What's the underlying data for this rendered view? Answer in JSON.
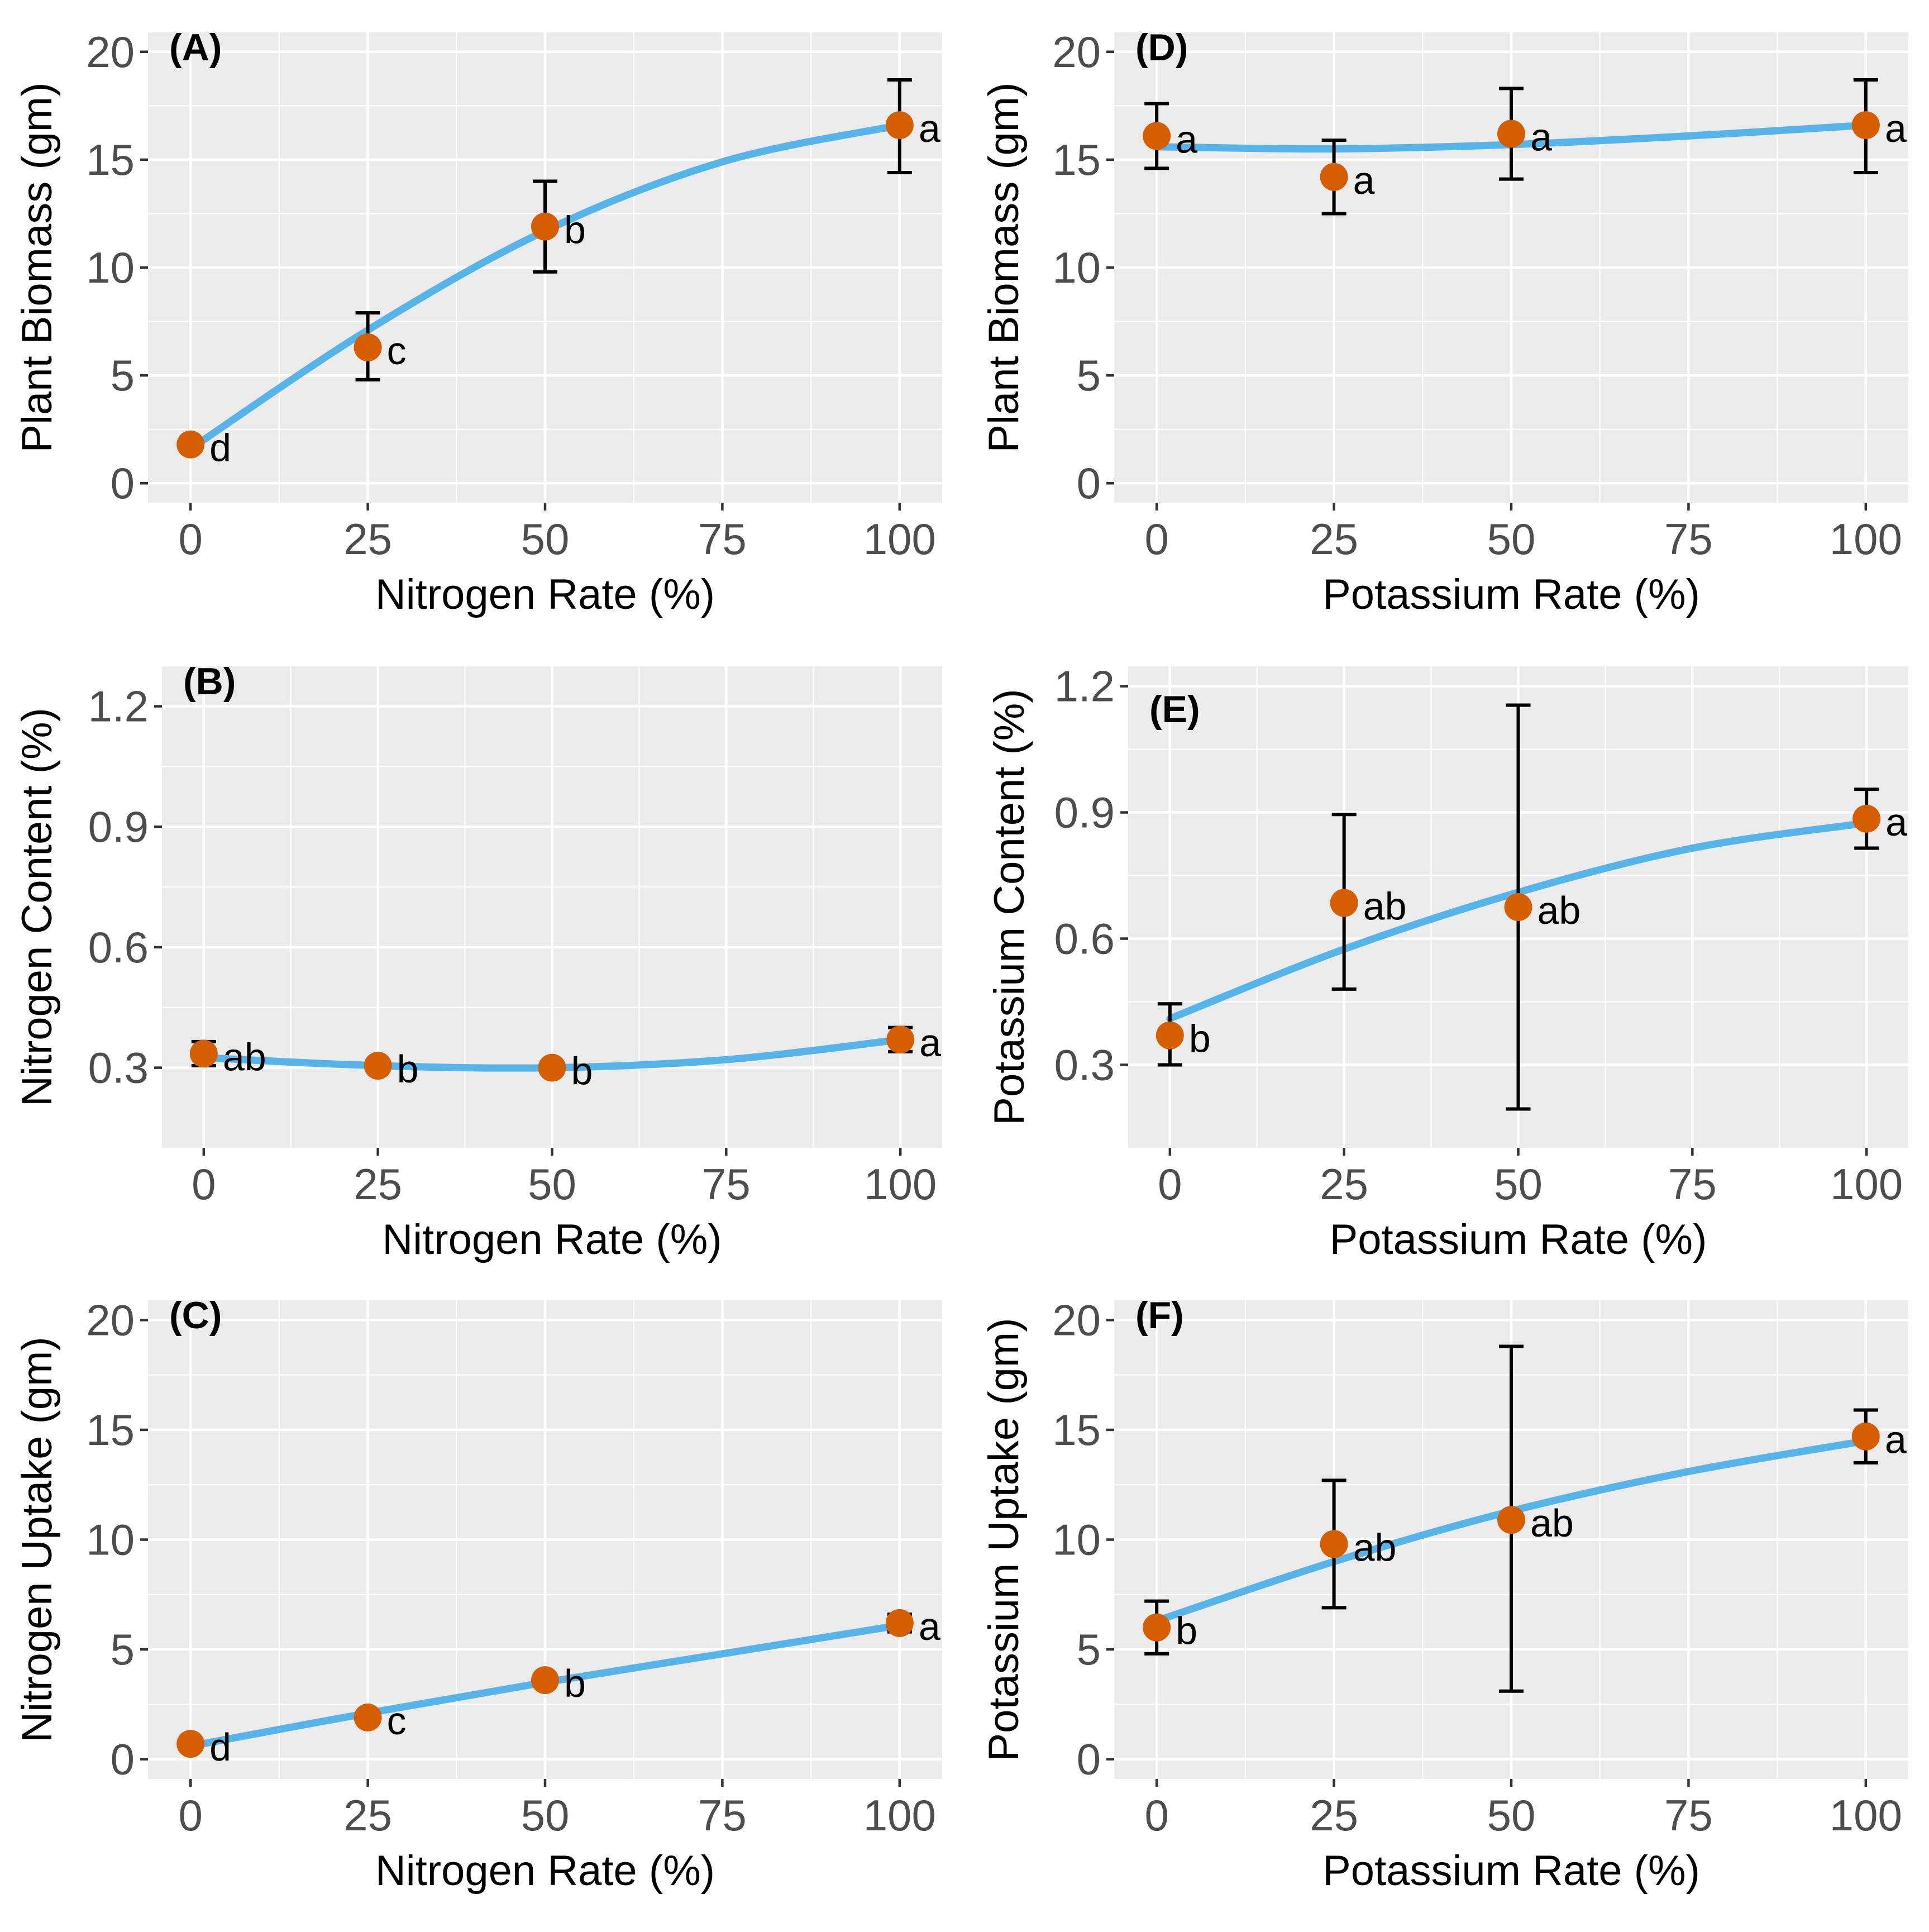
{
  "chart_data": [
    {
      "id": "A",
      "type": "scatter",
      "tag": "(A)",
      "title": "",
      "xlabel": "Nitrogen Rate (%)",
      "ylabel": "Plant Biomass (gm)",
      "xlim": [
        0,
        100
      ],
      "ylim": [
        0,
        20
      ],
      "xticks": [
        0,
        25,
        50,
        75,
        100
      ],
      "xtick_labels": [
        "0",
        "25",
        "50",
        "75",
        "100"
      ],
      "yticks": [
        0,
        5,
        10,
        15,
        20
      ],
      "ytick_labels": [
        "0",
        "5",
        "10",
        "15",
        "20"
      ],
      "grid": true,
      "points": [
        {
          "x": 0,
          "y": 1.8,
          "err_low": 1.8,
          "err_high": 1.8,
          "letter": "d"
        },
        {
          "x": 25,
          "y": 6.3,
          "err_low": 4.8,
          "err_high": 7.9,
          "letter": "c"
        },
        {
          "x": 50,
          "y": 11.9,
          "err_low": 9.8,
          "err_high": 14.0,
          "letter": "b"
        },
        {
          "x": 100,
          "y": 16.6,
          "err_low": 14.4,
          "err_high": 18.7,
          "letter": "a"
        }
      ],
      "fit": {
        "x": [
          0,
          25,
          50,
          75,
          100
        ],
        "y": [
          1.6,
          7.1,
          11.7,
          14.9,
          16.6
        ]
      }
    },
    {
      "id": "D",
      "type": "scatter",
      "tag": "(D)",
      "title": "",
      "xlabel": "Potassium Rate (%)",
      "ylabel": "Plant Biomass (gm)",
      "xlim": [
        0,
        100
      ],
      "ylim": [
        0,
        20
      ],
      "xticks": [
        0,
        25,
        50,
        75,
        100
      ],
      "xtick_labels": [
        "0",
        "25",
        "50",
        "75",
        "100"
      ],
      "yticks": [
        0,
        5,
        10,
        15,
        20
      ],
      "ytick_labels": [
        "0",
        "5",
        "10",
        "15",
        "20"
      ],
      "grid": true,
      "points": [
        {
          "x": 0,
          "y": 16.1,
          "err_low": 14.6,
          "err_high": 17.6,
          "letter": "a"
        },
        {
          "x": 25,
          "y": 14.2,
          "err_low": 12.5,
          "err_high": 15.9,
          "letter": "a"
        },
        {
          "x": 50,
          "y": 16.2,
          "err_low": 14.1,
          "err_high": 18.3,
          "letter": "a"
        },
        {
          "x": 100,
          "y": 16.6,
          "err_low": 14.4,
          "err_high": 18.7,
          "letter": "a"
        }
      ],
      "fit": {
        "x": [
          0,
          25,
          50,
          75,
          100
        ],
        "y": [
          15.6,
          15.5,
          15.7,
          16.1,
          16.6
        ]
      }
    },
    {
      "id": "B",
      "type": "scatter",
      "tag": "(B)",
      "title": "",
      "xlabel": "Nitrogen Rate (%)",
      "ylabel": "Nitrogen Content (%)",
      "xlim": [
        0,
        100
      ],
      "ylim": [
        0.15,
        1.25
      ],
      "xticks": [
        0,
        25,
        50,
        75,
        100
      ],
      "xtick_labels": [
        "0",
        "25",
        "50",
        "75",
        "100"
      ],
      "yticks": [
        0.3,
        0.6,
        0.9,
        1.2
      ],
      "ytick_labels": [
        "0.3",
        "0.6",
        "0.9",
        "1.2"
      ],
      "grid": true,
      "points": [
        {
          "x": 0,
          "y": 0.335,
          "err_low": 0.305,
          "err_high": 0.365,
          "letter": "ab"
        },
        {
          "x": 25,
          "y": 0.305,
          "err_low": 0.305,
          "err_high": 0.305,
          "letter": "b"
        },
        {
          "x": 50,
          "y": 0.3,
          "err_low": 0.3,
          "err_high": 0.3,
          "letter": "b"
        },
        {
          "x": 100,
          "y": 0.37,
          "err_low": 0.34,
          "err_high": 0.4,
          "letter": "a"
        }
      ],
      "fit": {
        "x": [
          0,
          25,
          50,
          75,
          100
        ],
        "y": [
          0.325,
          0.305,
          0.3,
          0.32,
          0.37
        ]
      }
    },
    {
      "id": "E",
      "type": "scatter",
      "tag": "(E)",
      "title": "",
      "xlabel": "Potassium Rate (%)",
      "ylabel": "Potassium Content (%)",
      "xlim": [
        0,
        100
      ],
      "ylim": [
        0.15,
        1.2
      ],
      "xticks": [
        0,
        25,
        50,
        75,
        100
      ],
      "xtick_labels": [
        "0",
        "25",
        "50",
        "75",
        "100"
      ],
      "yticks": [
        0.3,
        0.6,
        0.9,
        1.2
      ],
      "ytick_labels": [
        "0.3",
        "0.6",
        "0.9",
        "1.2"
      ],
      "grid": true,
      "points": [
        {
          "x": 0,
          "y": 0.37,
          "err_low": 0.3,
          "err_high": 0.445,
          "letter": "b"
        },
        {
          "x": 25,
          "y": 0.685,
          "err_low": 0.48,
          "err_high": 0.895,
          "letter": "ab"
        },
        {
          "x": 50,
          "y": 0.675,
          "err_low": 0.195,
          "err_high": 1.155,
          "letter": "ab"
        },
        {
          "x": 100,
          "y": 0.885,
          "err_low": 0.815,
          "err_high": 0.955,
          "letter": "a"
        }
      ],
      "fit": {
        "x": [
          0,
          25,
          50,
          75,
          100
        ],
        "y": [
          0.41,
          0.575,
          0.71,
          0.815,
          0.875
        ]
      }
    },
    {
      "id": "C",
      "type": "scatter",
      "tag": "(C)",
      "title": "",
      "xlabel": "Nitrogen Rate (%)",
      "ylabel": "Nitrogen Uptake (gm)",
      "xlim": [
        0,
        100
      ],
      "ylim": [
        0,
        20
      ],
      "xticks": [
        0,
        25,
        50,
        75,
        100
      ],
      "xtick_labels": [
        "0",
        "25",
        "50",
        "75",
        "100"
      ],
      "yticks": [
        0,
        5,
        10,
        15,
        20
      ],
      "ytick_labels": [
        "0",
        "5",
        "10",
        "15",
        "20"
      ],
      "grid": true,
      "points": [
        {
          "x": 0,
          "y": 0.7,
          "err_low": 0.7,
          "err_high": 0.7,
          "letter": "d"
        },
        {
          "x": 25,
          "y": 1.9,
          "err_low": 1.9,
          "err_high": 1.9,
          "letter": "c"
        },
        {
          "x": 50,
          "y": 3.6,
          "err_low": 3.6,
          "err_high": 3.6,
          "letter": "b"
        },
        {
          "x": 100,
          "y": 6.2,
          "err_low": 5.8,
          "err_high": 6.6,
          "letter": "a"
        }
      ],
      "fit": {
        "x": [
          0,
          25,
          50,
          75,
          100
        ],
        "y": [
          0.6,
          2.1,
          3.5,
          4.8,
          6.1
        ]
      }
    },
    {
      "id": "F",
      "type": "scatter",
      "tag": "(F)",
      "title": "",
      "xlabel": "Potassium Rate (%)",
      "ylabel": "Potassium Uptake (gm)",
      "xlim": [
        0,
        100
      ],
      "ylim": [
        0,
        20
      ],
      "xticks": [
        0,
        25,
        50,
        75,
        100
      ],
      "xtick_labels": [
        "0",
        "25",
        "50",
        "75",
        "100"
      ],
      "yticks": [
        0,
        5,
        10,
        15,
        20
      ],
      "ytick_labels": [
        "0",
        "5",
        "10",
        "15",
        "20"
      ],
      "grid": true,
      "points": [
        {
          "x": 0,
          "y": 6.0,
          "err_low": 4.8,
          "err_high": 7.2,
          "letter": "b"
        },
        {
          "x": 25,
          "y": 9.8,
          "err_low": 6.9,
          "err_high": 12.7,
          "letter": "ab"
        },
        {
          "x": 50,
          "y": 10.9,
          "err_low": 3.1,
          "err_high": 18.8,
          "letter": "ab"
        },
        {
          "x": 100,
          "y": 14.7,
          "err_low": 13.5,
          "err_high": 15.9,
          "letter": "a"
        }
      ],
      "fit": {
        "x": [
          0,
          25,
          50,
          75,
          100
        ],
        "y": [
          6.3,
          9.0,
          11.3,
          13.1,
          14.5
        ]
      }
    }
  ],
  "colors": {
    "panel_background": "#ebebeb",
    "grid": "#ffffff",
    "point": "#d55e00",
    "fit_line": "#56b4e9",
    "error_bar": "#000000"
  }
}
